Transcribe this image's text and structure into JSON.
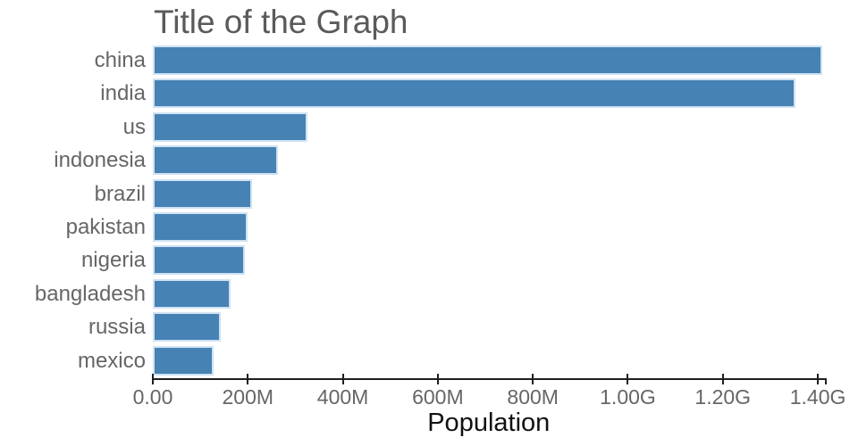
{
  "title": "Title of the Graph",
  "chart_data": {
    "type": "bar",
    "orientation": "horizontal",
    "title": "Title of the Graph",
    "xlabel": "Population",
    "ylabel": "",
    "categories": [
      "china",
      "india",
      "us",
      "indonesia",
      "brazil",
      "pakistan",
      "nigeria",
      "bangladesh",
      "russia",
      "mexico"
    ],
    "values_millions": [
      1410,
      1353,
      326,
      264,
      209,
      200,
      193,
      164,
      143,
      128
    ],
    "x_tick_labels": [
      "0.00",
      "200M",
      "400M",
      "600M",
      "800M",
      "1.00G",
      "1.20G",
      "1.40G"
    ],
    "x_tick_values_millions": [
      0,
      200,
      400,
      600,
      800,
      1000,
      1200,
      1400
    ],
    "xlim_millions": [
      0,
      1414
    ],
    "grid": false,
    "legend": "none",
    "bar_color": "#4682b4",
    "bar_border_color": "#cfe2f3",
    "axis_color": "#1f1f1f",
    "title_color": "#5a5a5a",
    "tick_label_color": "#666666",
    "axis_title_color": "#111111"
  }
}
